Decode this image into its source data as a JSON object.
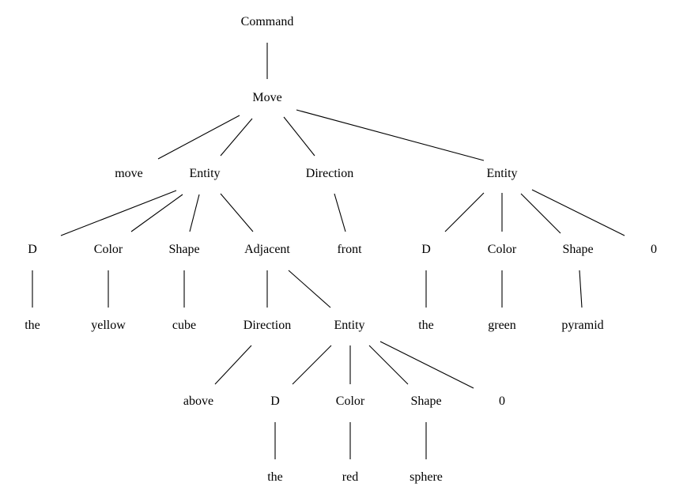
{
  "tree": {
    "n0": "Command",
    "n1": "Move",
    "n2": "move",
    "n3": "Entity",
    "n4": "Direction",
    "n5": "Entity",
    "n6": "D",
    "n7": "Color",
    "n8": "Shape",
    "n9": "Adjacent",
    "n10": "front",
    "n11": "D",
    "n12": "Color",
    "n13": "Shape",
    "n14": "0",
    "n15": "the",
    "n16": "yellow",
    "n17": "cube",
    "n18": "Direction",
    "n19": "Entity",
    "n20": "the",
    "n21": "green",
    "n22": "pyramid",
    "n23": "above",
    "n24": "D",
    "n25": "Color",
    "n26": "Shape",
    "n27": "0",
    "n28": "the",
    "n29": "red",
    "n30": "sphere"
  }
}
